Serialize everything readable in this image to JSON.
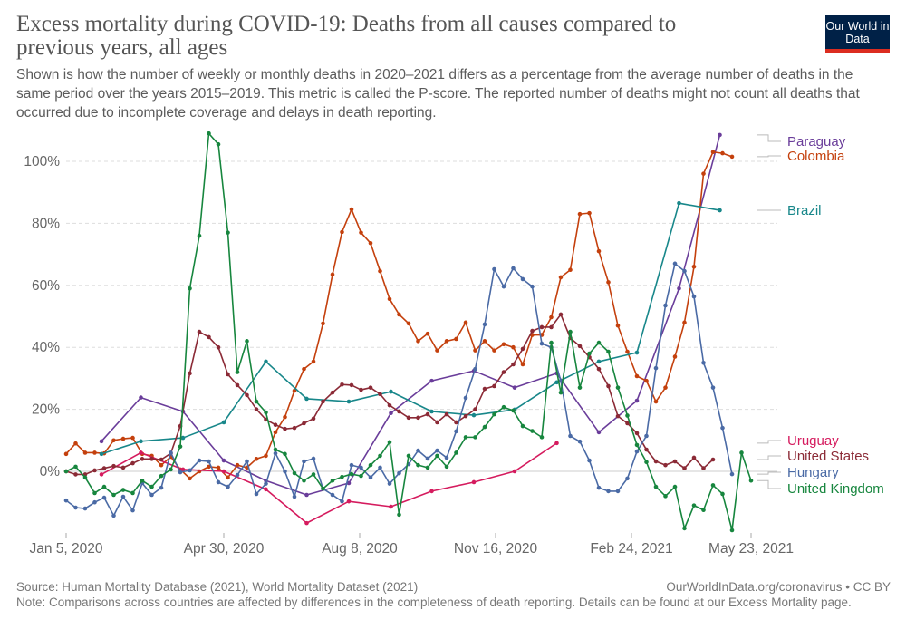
{
  "header": {
    "title": "Excess mortality during COVID-19: Deaths from all causes compared to previous years, all ages",
    "subtitle": "Shown is how the number of weekly or monthly deaths in 2020–2021 differs as a percentage from the average number of deaths in the same period over the years 2015–2019. This metric is called the P-score. The reported number of deaths might not count all deaths that occurred due to incomplete coverage and delays in death reporting.",
    "logo": "Our World in Data"
  },
  "footer": {
    "source": "Source: Human Mortality Database (2021), World Mortality Dataset (2021)",
    "link": "OurWorldInData.org/coronavirus • CC BY",
    "note": "Note: Comparisons across countries are affected by differences in the completeness of death reporting. Details can be found at our Excess Mortality page."
  },
  "chart_data": {
    "type": "line",
    "title": "Excess mortality during COVID-19: Deaths from all causes compared to previous years, all ages",
    "xlabel": "",
    "ylabel": "",
    "x_ticks": [
      "Jan 5, 2020",
      "Apr 30, 2020",
      "Aug 8, 2020",
      "Nov 16, 2020",
      "Feb 24, 2021",
      "May 23, 2021"
    ],
    "x_tick_dates": [
      "2020-01-05",
      "2020-04-30",
      "2020-08-08",
      "2020-11-16",
      "2021-02-24",
      "2021-05-23"
    ],
    "y_ticks": [
      "0%",
      "20%",
      "40%",
      "60%",
      "80%",
      "100%"
    ],
    "y_tick_values": [
      0,
      20,
      40,
      60,
      80,
      100
    ],
    "xlim": [
      "2020-01-05",
      "2021-05-23"
    ],
    "ylim": [
      -20,
      110
    ],
    "grid": "horizontal dashed",
    "legend": "right, labels at line ends",
    "series": [
      {
        "name": "Paraguay",
        "color": "#6a3d9a",
        "frequency": "monthly",
        "x": [
          "2020-01-31",
          "2020-02-29",
          "2020-03-31",
          "2020-04-30",
          "2020-05-31",
          "2020-06-30",
          "2020-07-31",
          "2020-08-31",
          "2020-09-30",
          "2020-10-31",
          "2020-11-30",
          "2020-12-31",
          "2021-01-31",
          "2021-02-28",
          "2021-03-31",
          "2021-04-30"
        ],
        "values": [
          9.7,
          23.8,
          19.3,
          3.5,
          -3,
          -7.6,
          -3.8,
          18.8,
          29.2,
          32.4,
          27,
          31.6,
          12.6,
          22.8,
          59,
          108.5
        ]
      },
      {
        "name": "Colombia",
        "color": "#c4400d",
        "frequency": "weekly",
        "x_start": "2020-01-05",
        "values": [
          5.6,
          9,
          6,
          6,
          5.8,
          10,
          10.5,
          10.8,
          5.6,
          5,
          2,
          4.7,
          0.6,
          -2.3,
          0,
          1.5,
          1.2,
          -2,
          2,
          1.2,
          4,
          5,
          12.6,
          17.5,
          26,
          33,
          35.4,
          47.7,
          63.5,
          77.2,
          84.5,
          77,
          73.6,
          64.6,
          55.6,
          50.6,
          47.7,
          42,
          44.4,
          39,
          42,
          42.7,
          48,
          39,
          42,
          39,
          41,
          40,
          34.5,
          44,
          44,
          49.7,
          62.6,
          65,
          83,
          83.3,
          71,
          61,
          47,
          38.6,
          30.7,
          29.2,
          22.5,
          27,
          37,
          48,
          66,
          96,
          103,
          102.6,
          101.5
        ]
      },
      {
        "name": "Brazil",
        "color": "#18878a",
        "frequency": "monthly",
        "x": [
          "2020-01-31",
          "2020-02-29",
          "2020-03-31",
          "2020-04-30",
          "2020-05-31",
          "2020-06-30",
          "2020-07-31",
          "2020-08-31",
          "2020-09-30",
          "2020-10-31",
          "2020-11-30",
          "2020-12-31",
          "2021-01-31",
          "2021-02-28",
          "2021-03-31",
          "2021-04-30"
        ],
        "values": [
          5.6,
          9.7,
          10.8,
          15.8,
          35.4,
          23.4,
          22.5,
          25.7,
          19.3,
          18.1,
          19.9,
          28.7,
          35.4,
          38.3,
          86.5,
          84.2
        ]
      },
      {
        "name": "Uruguay",
        "color": "#d51b5e",
        "frequency": "monthly",
        "x": [
          "2020-01-31",
          "2020-02-29",
          "2020-03-31",
          "2020-04-30",
          "2020-05-31",
          "2020-06-30",
          "2020-07-31",
          "2020-08-31",
          "2020-09-30",
          "2020-10-31",
          "2020-11-30",
          "2020-12-31"
        ],
        "values": [
          -1,
          6,
          0.6,
          0,
          -5.8,
          -16.7,
          -9.7,
          -11.4,
          -6.4,
          -3.5,
          0,
          9.1
        ]
      },
      {
        "name": "United States",
        "color": "#8b2a36",
        "frequency": "weekly",
        "x_start": "2020-01-05",
        "values": [
          0,
          -1,
          -1,
          0.3,
          1,
          1.7,
          1.2,
          2.6,
          4,
          4,
          3.8,
          5.8,
          14.6,
          31.6,
          45,
          43.3,
          40,
          31.3,
          27.8,
          24.6,
          20,
          16.7,
          15,
          13.7,
          14,
          15.5,
          17,
          22.5,
          25.4,
          28,
          27.8,
          26.3,
          27,
          24.9,
          21.3,
          19.3,
          17.3,
          17.3,
          18.4,
          15.8,
          18.4,
          15.8,
          17.8,
          20,
          26.6,
          27.5,
          32,
          34.5,
          39.5,
          45.3,
          46.5,
          46.5,
          50.6,
          43,
          40.4,
          36.8,
          33,
          27.5,
          17.8,
          15.5,
          12.3,
          7,
          3.2,
          2,
          3.2,
          1,
          4.4,
          1,
          3.8
        ]
      },
      {
        "name": "Hungary",
        "color": "#4a6aa5",
        "frequency": "weekly",
        "x_start": "2020-01-05",
        "values": [
          -9.4,
          -11.7,
          -12,
          -10,
          -8.5,
          -14.3,
          -8.2,
          -12.6,
          -3.8,
          -7.6,
          -5.3,
          6,
          -0.3,
          0.3,
          3.5,
          3.2,
          -3.5,
          -5,
          -1.2,
          3.2,
          -7.3,
          -4,
          5.8,
          0,
          -8.2,
          3.2,
          4.1,
          -5.6,
          -7.6,
          -9.7,
          2,
          1.2,
          -2,
          1.2,
          -4,
          -0.6,
          2.3,
          6.7,
          4.1,
          6.7,
          4.4,
          12.9,
          23.7,
          33,
          47.4,
          65.2,
          59.6,
          65.5,
          62,
          59.6,
          41.2,
          40,
          29.2,
          11.4,
          9.6,
          3.5,
          -5.3,
          -6.4,
          -6.4,
          -2.3,
          6.4,
          11.4,
          33.3,
          53.5,
          67,
          64.6,
          56.4,
          35,
          27,
          14,
          -0.9
        ]
      },
      {
        "name": "United Kingdom",
        "color": "#17863e",
        "frequency": "weekly",
        "x_start": "2020-01-05",
        "values": [
          0,
          1.5,
          -2,
          -7,
          -5,
          -7.6,
          -6,
          -7,
          -3,
          -5,
          -1.5,
          0.6,
          8,
          59,
          76,
          109,
          105.5,
          77,
          32,
          42,
          22.5,
          19,
          7,
          5.6,
          -0.6,
          -3,
          -1,
          -5.6,
          -3,
          -1.8,
          -0.9,
          -1.5,
          2,
          5,
          9.4,
          -14,
          5,
          2,
          1.2,
          5,
          1.5,
          6,
          11,
          11,
          14.3,
          18.4,
          20.7,
          19.6,
          14.6,
          13,
          11,
          41.5,
          25.4,
          45,
          27,
          38,
          41.5,
          38.6,
          27,
          18,
          8.5,
          3,
          -5,
          -8,
          -5,
          -18.4,
          -11,
          -12.5,
          -4.5,
          -7.3,
          -19,
          6,
          -3
        ]
      }
    ]
  }
}
